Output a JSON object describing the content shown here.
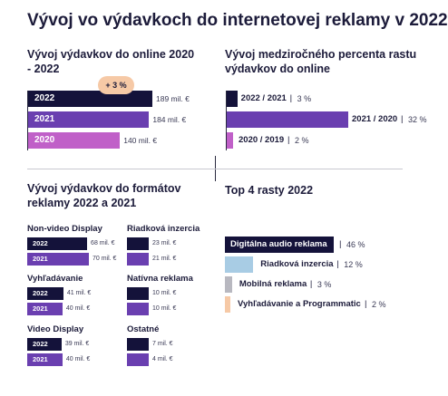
{
  "title": "Vývoj vo výdavkoch do internetovej reklamy v 2022",
  "colors": {
    "navy": "#14123a",
    "purple": "#6a3fb0",
    "magenta": "#c060c8",
    "light_blue": "#a8cce4",
    "gray": "#b8b8c0",
    "peach": "#f6c9a6"
  },
  "chart_data": [
    {
      "type": "bar",
      "title": "Vývoj výdavkov do online 2020 - 2022",
      "annotation": "+ 3 %",
      "categories": [
        "2022",
        "2021",
        "2020"
      ],
      "values": [
        189,
        184,
        140
      ],
      "value_labels": [
        "189 mil. €",
        "184 mil. €",
        "140 mil. €"
      ]
    },
    {
      "type": "bar",
      "title": "Vývoj medziročného percenta rastu výdavkov do online",
      "categories": [
        "2022 / 2021",
        "2021 / 2020",
        "2020 / 2019"
      ],
      "values": [
        3,
        32,
        2
      ],
      "value_labels": [
        "3 %",
        "32 %",
        "2 %"
      ]
    },
    {
      "type": "bar",
      "title": "Vývoj výdavkov do formátov reklamy 2022 a 2021",
      "groups": [
        {
          "name": "Non-video Display",
          "categories": [
            "2022",
            "2021"
          ],
          "values": [
            68,
            70
          ],
          "value_labels": [
            "68 mil. €",
            "70 mil. €"
          ]
        },
        {
          "name": "Riadková inzercia",
          "categories": [
            "2022",
            "2021"
          ],
          "values": [
            23,
            21
          ],
          "value_labels": [
            "23 mil. €",
            "21 mil. €"
          ]
        },
        {
          "name": "Vyhľadávanie",
          "categories": [
            "2022",
            "2021"
          ],
          "values": [
            41,
            40
          ],
          "value_labels": [
            "41 mil. €",
            "40 mil. €"
          ]
        },
        {
          "name": "Natívna reklama",
          "categories": [
            "2022",
            "2021"
          ],
          "values": [
            10,
            10
          ],
          "value_labels": [
            "10 mil. €",
            "10 mil. €"
          ]
        },
        {
          "name": "Video Display",
          "categories": [
            "2022",
            "2021"
          ],
          "values": [
            39,
            40
          ],
          "value_labels": [
            "39 mil. €",
            "40 mil. €"
          ]
        },
        {
          "name": "Ostatné",
          "categories": [
            "2022",
            "2021"
          ],
          "values": [
            7,
            4
          ],
          "value_labels": [
            "7 mil. €",
            "4 mil. €"
          ]
        }
      ]
    },
    {
      "type": "bar",
      "title": "Top 4 rasty 2022",
      "categories": [
        "Digitálna audio reklama",
        "Riadková inzercia",
        "Mobilná reklama",
        "Vyhľadávanie a Programmatic"
      ],
      "values": [
        46,
        12,
        3,
        2
      ],
      "value_labels": [
        "46 %",
        "12 %",
        "3 %",
        "2 %"
      ]
    }
  ]
}
